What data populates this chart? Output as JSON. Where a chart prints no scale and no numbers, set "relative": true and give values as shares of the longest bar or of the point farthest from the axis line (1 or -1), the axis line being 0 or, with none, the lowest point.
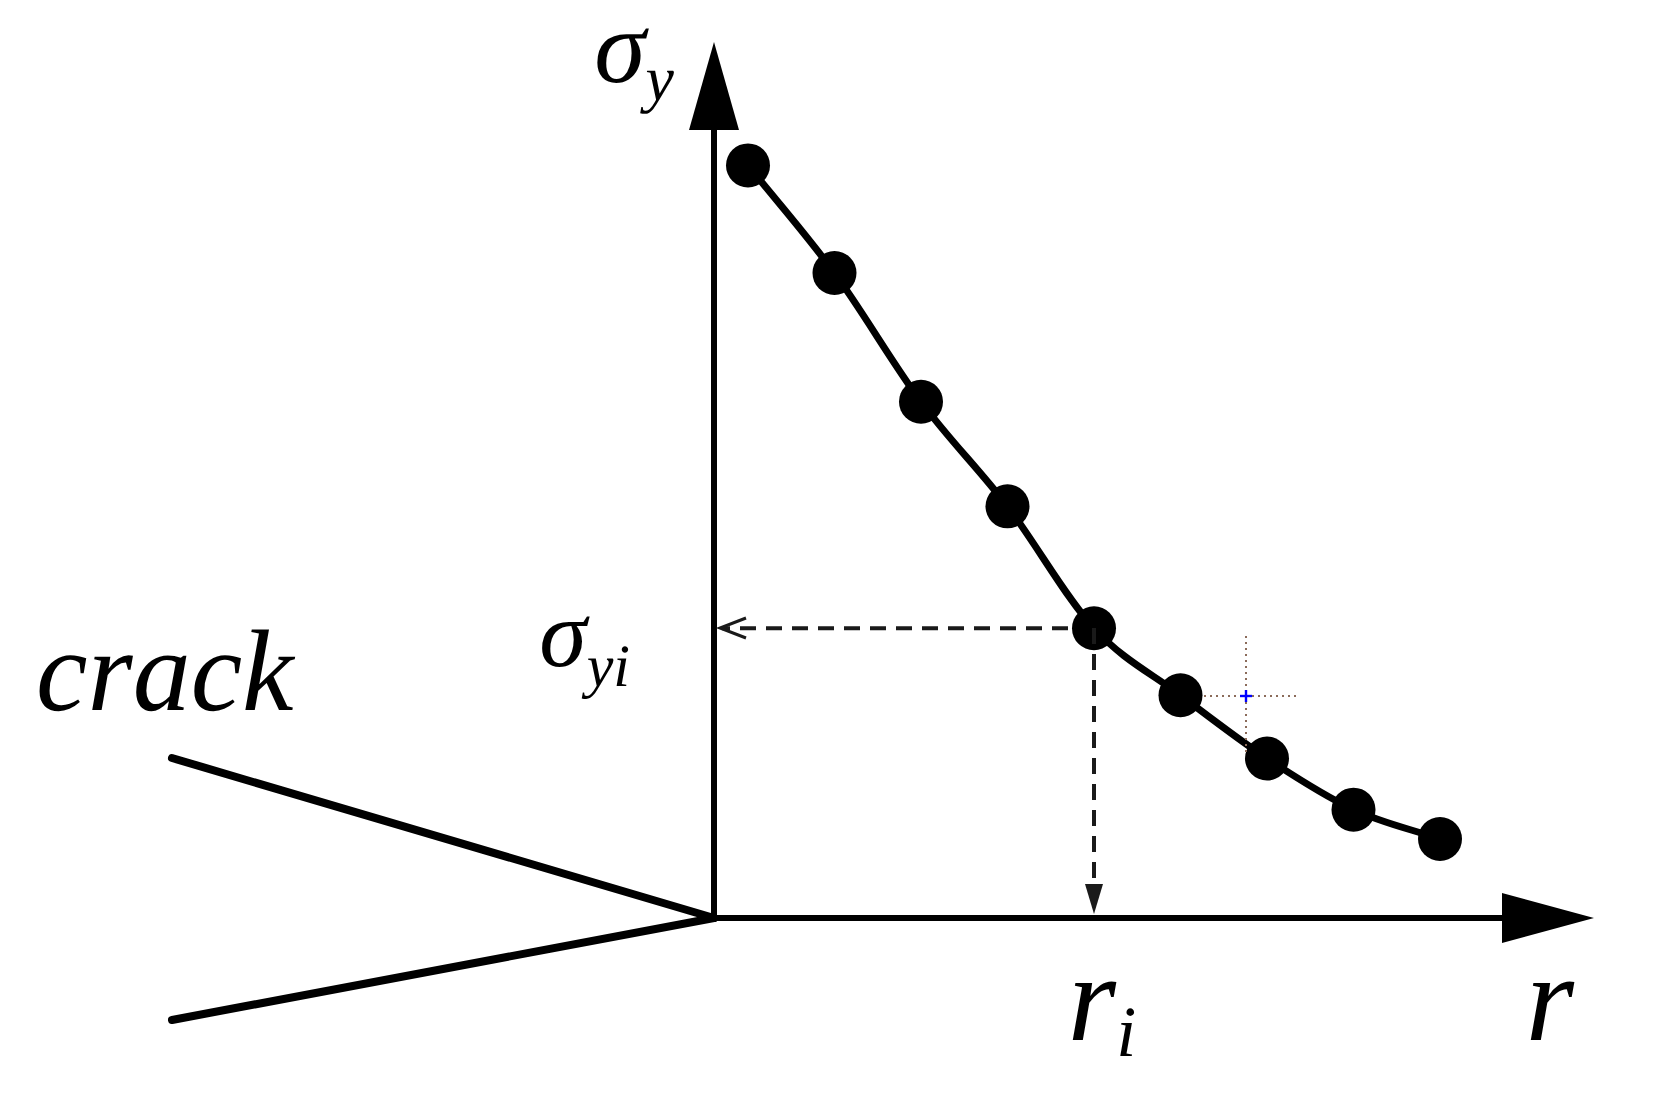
{
  "chart_data": {
    "type": "line",
    "xlabel": "r",
    "ylabel": "σ$_{y}$",
    "relative": true,
    "categories": [
      null,
      null,
      null,
      null,
      null,
      null,
      null,
      null,
      null
    ],
    "values": [
      1,
      0.857,
      0.686,
      0.547,
      0.385,
      0.296,
      0.212,
      0.144,
      0.105
    ],
    "color": "#000000",
    "marker": "circle",
    "line_style": "solid",
    "ref_lines": [
      {
        "axis": "y",
        "value": 0.385,
        "label": "σ$_{yi}$",
        "color": "#1a1a1a",
        "line_style": "dashed"
      }
    ],
    "annotations": [
      "crack",
      "r$_{i}$"
    ]
  }
}
